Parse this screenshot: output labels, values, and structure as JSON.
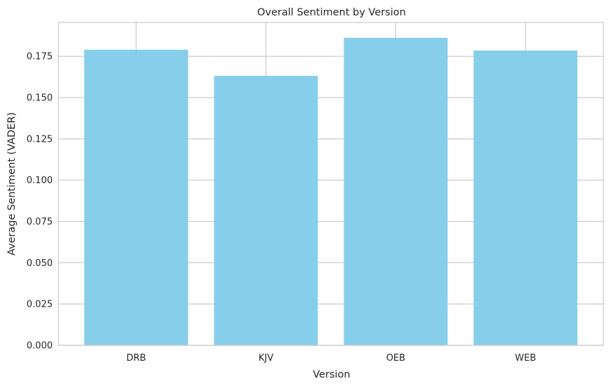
{
  "chart_data": {
    "type": "bar",
    "title": "Overall Sentiment by Version",
    "xlabel": "Version",
    "ylabel": "Average Sentiment (VADER)",
    "categories": [
      "DRB",
      "KJV",
      "OEB",
      "WEB"
    ],
    "values": [
      0.179,
      0.1632,
      0.1862,
      0.1785
    ],
    "ylim": [
      0,
      0.1955
    ],
    "yticks": [
      0.0,
      0.025,
      0.05,
      0.075,
      0.1,
      0.125,
      0.15,
      0.175
    ],
    "ytick_labels": [
      "0.000",
      "0.025",
      "0.050",
      "0.075",
      "0.100",
      "0.125",
      "0.150",
      "0.175"
    ],
    "grid": true,
    "bar_color": "#87CEEB",
    "grid_color": "#cccccc",
    "axes_edge_color": "#cccccc"
  }
}
